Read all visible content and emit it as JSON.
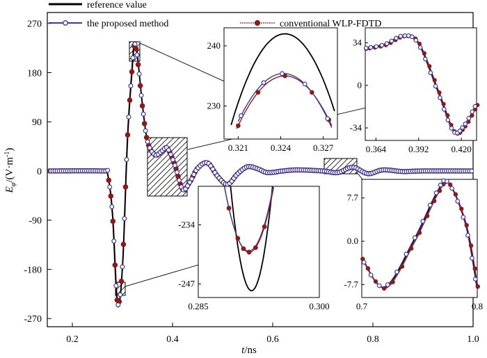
{
  "chart_data": {
    "type": "line",
    "xlabel_var": "t",
    "xlabel_unit": "/ns",
    "ylabel_var": "E",
    "ylabel_sub": "φ",
    "ylabel_unit": "/(V·m",
    "ylabel_exp": "-1",
    "ylabel_close": ")",
    "xlim": [
      0.15,
      1.0
    ],
    "ylim": [
      -285,
      290
    ],
    "xticks": [
      "0.2",
      "0.4",
      "0.6",
      "0.8",
      "1.0"
    ],
    "xtick_values": [
      0.2,
      0.4,
      0.6,
      0.8,
      1.0
    ],
    "yticks": [
      "270",
      "180",
      "90",
      "0",
      "-90",
      "-180",
      "-270"
    ],
    "ytick_values": [
      270,
      180,
      90,
      0,
      -90,
      -180,
      -270
    ],
    "legend_placement": "top",
    "series": [
      {
        "name": "reference value",
        "color": "#000000",
        "marker": "none"
      },
      {
        "name": "the proposed method",
        "color": "#3b3b9e",
        "marker": "open-circle"
      },
      {
        "name": "conventional WLP-FDTD",
        "color": "#8b1a1a",
        "marker": "filled-circle"
      }
    ],
    "waveform_points": [
      [
        0.15,
        0
      ],
      [
        0.26,
        0
      ],
      [
        0.27,
        -5
      ],
      [
        0.28,
        -80
      ],
      [
        0.29,
        -245
      ],
      [
        0.3,
        -175
      ],
      [
        0.31,
        60
      ],
      [
        0.32,
        200
      ],
      [
        0.324,
        236
      ],
      [
        0.33,
        210
      ],
      [
        0.34,
        120
      ],
      [
        0.35,
        55
      ],
      [
        0.365,
        30
      ],
      [
        0.38,
        38
      ],
      [
        0.39,
        42
      ],
      [
        0.405,
        10
      ],
      [
        0.42,
        -34
      ],
      [
        0.435,
        -20
      ],
      [
        0.45,
        5
      ],
      [
        0.47,
        15
      ],
      [
        0.49,
        -10
      ],
      [
        0.51,
        -25
      ],
      [
        0.53,
        -5
      ],
      [
        0.55,
        8
      ],
      [
        0.57,
        4
      ],
      [
        0.59,
        -3
      ],
      [
        0.62,
        0
      ],
      [
        0.65,
        2
      ],
      [
        0.7,
        0
      ],
      [
        0.73,
        -3
      ],
      [
        0.76,
        7
      ],
      [
        0.79,
        -5
      ],
      [
        0.82,
        2
      ],
      [
        0.86,
        -1
      ],
      [
        0.9,
        0
      ],
      [
        1.0,
        0
      ]
    ],
    "insets": [
      {
        "xlim": [
          0.32,
          0.328
        ],
        "ylim": [
          224.5,
          243
        ],
        "xticks": [
          "0.321",
          "0.324",
          "0.327"
        ],
        "xtick_values": [
          0.321,
          0.324,
          0.327
        ],
        "yticks": [
          "240",
          "230"
        ],
        "ytick_values": [
          240,
          230
        ],
        "reference_peak": [
          0.3243,
          242
        ],
        "proposed_peak": [
          0.3242,
          235.4
        ],
        "conventional_peak": [
          0.3243,
          235
        ]
      },
      {
        "xlim": [
          0.357,
          0.43
        ],
        "ylim": [
          -44,
          46
        ],
        "xticks": [
          "0.364",
          "0.392",
          "0.420"
        ],
        "xtick_values": [
          0.364,
          0.392,
          0.42
        ],
        "yticks": [
          "34",
          "0",
          "-34"
        ],
        "ytick_values": [
          34,
          0,
          -34
        ],
        "points": [
          [
            0.357,
            30
          ],
          [
            0.37,
            33
          ],
          [
            0.382,
            40
          ],
          [
            0.392,
            34
          ],
          [
            0.405,
            -5
          ],
          [
            0.415,
            -36
          ],
          [
            0.422,
            -32
          ],
          [
            0.43,
            -15
          ]
        ]
      },
      {
        "xlim": [
          0.285,
          0.3
        ],
        "ylim": [
          -250,
          -225.5
        ],
        "xticks": [
          "0.285",
          "0.300"
        ],
        "xtick_values": [
          0.285,
          0.3
        ],
        "yticks": [
          "-234",
          "-247"
        ],
        "ytick_values": [
          -234,
          -247
        ],
        "reference_min": [
          0.2916,
          -248.5
        ],
        "method_min": [
          0.2913,
          -240
        ]
      },
      {
        "xlim": [
          0.7,
          0.8
        ],
        "ylim": [
          -10,
          11
        ],
        "xticks": [
          "0.7",
          "0.8"
        ],
        "xtick_values": [
          0.7,
          0.8
        ],
        "yticks": [
          "7.7",
          "0.0",
          "-7.7"
        ],
        "ytick_values": [
          7.7,
          0.0,
          -7.7
        ],
        "points": [
          [
            0.7,
            -3
          ],
          [
            0.72,
            -8.2
          ],
          [
            0.745,
            0
          ],
          [
            0.765,
            8.5
          ],
          [
            0.775,
            10.4
          ],
          [
            0.79,
            3
          ],
          [
            0.8,
            -8.3
          ]
        ]
      }
    ]
  }
}
